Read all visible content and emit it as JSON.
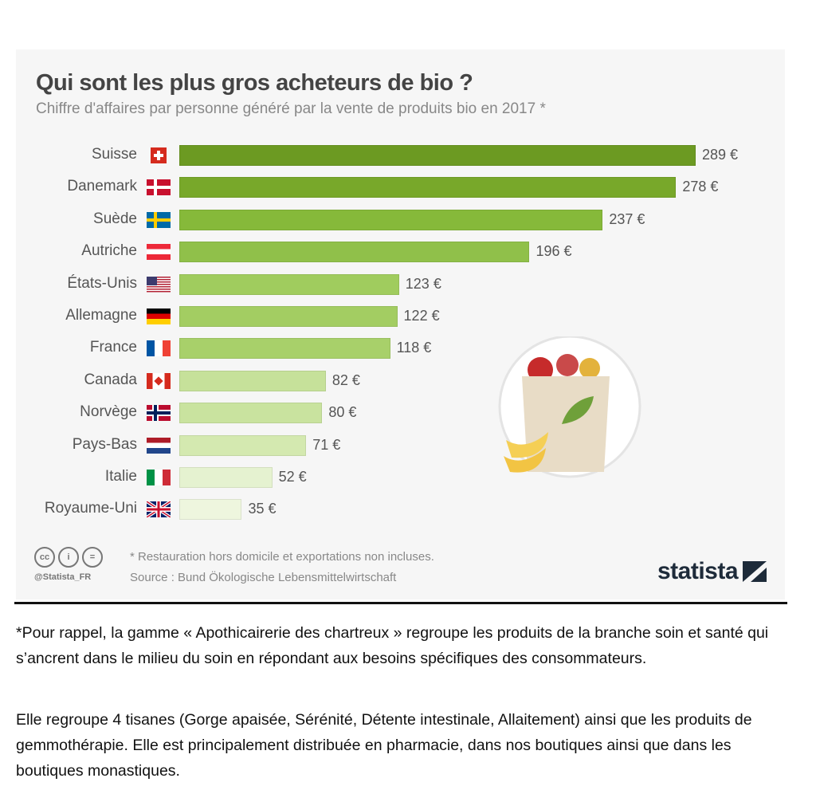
{
  "chart_data": {
    "type": "bar",
    "orientation": "horizontal",
    "title": "Qui sont les plus gros acheteurs de bio ?",
    "subtitle": "Chiffre d'affaires par personne généré par la vente de produits bio en 2017 *",
    "categories": [
      "Suisse",
      "Danemark",
      "Suède",
      "Autriche",
      "États-Unis",
      "Allemagne",
      "France",
      "Canada",
      "Norvège",
      "Pays-Bas",
      "Italie",
      "Royaume-Uni"
    ],
    "values": [
      289,
      278,
      237,
      196,
      123,
      122,
      118,
      82,
      80,
      71,
      52,
      35
    ],
    "value_labels": [
      "289 €",
      "278 €",
      "237 €",
      "196 €",
      "123 €",
      "122 €",
      "118 €",
      "82 €",
      "80 €",
      "71 €",
      "52 €",
      "35 €"
    ],
    "flags": [
      "ch",
      "dk",
      "se",
      "at",
      "us",
      "de",
      "fr",
      "ca",
      "no",
      "nl",
      "it",
      "gb"
    ],
    "colors": [
      "#6c9a22",
      "#78a82a",
      "#86b93a",
      "#90c04a",
      "#a0cc5e",
      "#a3cd62",
      "#a8d06a",
      "#c6e19a",
      "#c9e39f",
      "#d4e9b0",
      "#e5f2d0",
      "#eef6de"
    ],
    "xlim": [
      0,
      289
    ]
  },
  "footer": {
    "note": "* Restauration hors domicile et exportations non incluses.",
    "source": "Source : Bund Ökologische Lebensmittelwirtschaft",
    "handle": "@Statista_FR",
    "logo": "statista"
  },
  "text": {
    "p1": "*Pour rappel, la gamme « Apothicairerie des chartreux » regroupe les produits de la branche soin et santé qui s’ancrent dans le milieu du soin en répondant aux besoins spécifiques des consommateurs.",
    "p2": "Elle regroupe 4 tisanes (Gorge apaisée, Sérénité, Détente intestinale, Allaitement) ainsi que les produits de gemmothérapie. Elle est principalement distribuée en pharmacie, dans nos boutiques ainsi que dans les boutiques monastiques."
  }
}
